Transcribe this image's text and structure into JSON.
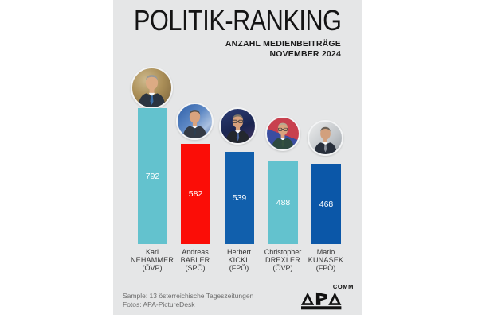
{
  "title": "POLITIK-RANKING",
  "subtitle_line1": "ANZAHL MEDIENBEITRÄGE",
  "subtitle_line2": "NOVEMBER 2024",
  "chart_data": {
    "type": "bar",
    "categories": [
      "Karl NEHAMMER (ÖVP)",
      "Andreas BABLER (SPÖ)",
      "Herbert KICKL (FPÖ)",
      "Christopher DREXLER (ÖVP)",
      "Mario KUNASEK (FPÖ)"
    ],
    "values": [
      792,
      582,
      539,
      488,
      468
    ],
    "title": "POLITIK-RANKING",
    "subtitle": "ANZAHL MEDIENBEITRÄGE NOVEMBER 2024",
    "xlabel": "",
    "ylabel": "Anzahl Medienbeiträge",
    "ylim": [
      0,
      800
    ],
    "grid": false,
    "legend": false,
    "value_labels": "inside-center-white",
    "bar_colors": [
      "#63c2ce",
      "#fb0d07",
      "#115fac",
      "#63c2ce",
      "#0b57a8"
    ]
  },
  "people": [
    {
      "first": "Karl",
      "last": "NEHAMMER",
      "party": "(ÖVP)",
      "value": "792"
    },
    {
      "first": "Andreas",
      "last": "BABLER",
      "party": "(SPÖ)",
      "value": "582"
    },
    {
      "first": "Herbert",
      "last": "KICKL",
      "party": "(FPÖ)",
      "value": "539"
    },
    {
      "first": "Christopher",
      "last": "DREXLER",
      "party": "(ÖVP)",
      "value": "488"
    },
    {
      "first": "Mario",
      "last": "KUNASEK",
      "party": "(FPÖ)",
      "value": "468"
    }
  ],
  "footer": {
    "line1": "Sample: 13 österreichische Tageszeitungen",
    "line2": "Fotos: APA-PictureDesk"
  },
  "logo": {
    "brand": "APA",
    "suffix": "COMM"
  },
  "colors": {
    "poster_background": "#e5e6e7",
    "page_background": "#ffffff",
    "bar_teal": "#63c2ce",
    "bar_red": "#fb0d07",
    "bar_blue": "#115fac",
    "bar_blue_dark": "#0b57a8",
    "value_text": "#ffffff",
    "title_text": "#141414",
    "label_text": "#333333",
    "footer_text": "#6e6e6e"
  }
}
